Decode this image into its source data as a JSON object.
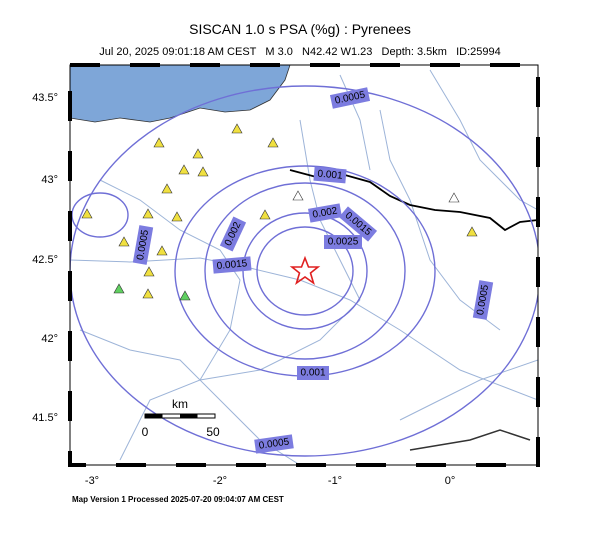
{
  "title": "SISCAN 1.0 s PSA (%g) : Pyrenees",
  "subtitle": "Jul 20, 2025 09:01:18 AM CEST   M 3.0   N42.42 W1.23   Depth: 3.5km   ID:25994",
  "lat_labels": [
    "43.5°",
    "43°",
    "42.5°",
    "42°",
    "41.5°"
  ],
  "lon_labels": [
    "-3°",
    "-2°",
    "-1°",
    "0°"
  ],
  "contour_labels": [
    "0.0005",
    "0.001",
    "0.0015",
    "0.002",
    "0.0025"
  ],
  "scale_bar": {
    "unit": "km",
    "start": "0",
    "end": "50"
  },
  "footer": "Map Version 1 Processed 2025-07-20 09:04:07 AM CEST"
}
